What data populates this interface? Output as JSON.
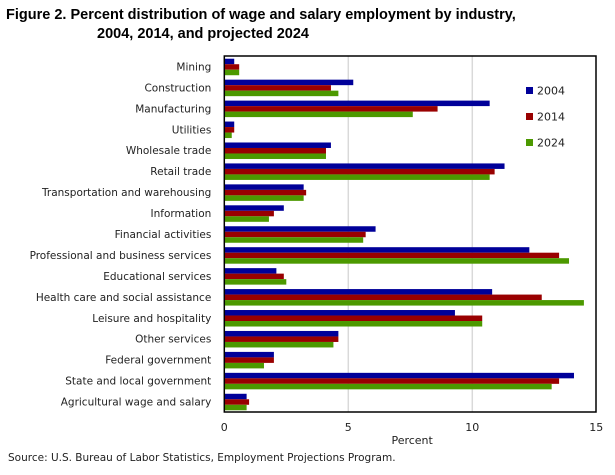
{
  "chart_data": {
    "type": "bar",
    "orientation": "horizontal",
    "title": "Figure 2. Percent distribution of wage and salary employment by industry,",
    "title_line2": "2004, 2014, and projected 2024",
    "xlabel": "Percent",
    "ylabel": "",
    "xlim": [
      0,
      15
    ],
    "xticks": [
      0,
      5,
      10,
      15
    ],
    "grid": true,
    "legend_position": "top-right",
    "categories": [
      "Mining",
      "Construction",
      "Manufacturing",
      "Utilities",
      "Wholesale trade",
      "Retail trade",
      "Transportation and warehousing",
      "Information",
      "Financial activities",
      "Professional and business services",
      "Educational services",
      "Health care and social assistance",
      "Leisure and hospitality",
      "Other services",
      "Federal government",
      "State and local government",
      "Agricultural wage and salary"
    ],
    "series": [
      {
        "name": "2004",
        "color": "#000099",
        "values": [
          0.4,
          5.2,
          10.7,
          0.4,
          4.3,
          11.3,
          3.2,
          2.4,
          6.1,
          12.3,
          2.1,
          10.8,
          9.3,
          4.6,
          2.0,
          14.1,
          0.9
        ]
      },
      {
        "name": "2014",
        "color": "#990000",
        "values": [
          0.6,
          4.3,
          8.6,
          0.4,
          4.1,
          10.9,
          3.3,
          2.0,
          5.7,
          13.5,
          2.4,
          12.8,
          10.4,
          4.6,
          2.0,
          13.5,
          1.0
        ]
      },
      {
        "name": "2024",
        "color": "#4c9900",
        "values": [
          0.6,
          4.6,
          7.6,
          0.3,
          4.1,
          10.7,
          3.2,
          1.8,
          5.6,
          13.9,
          2.5,
          14.5,
          10.4,
          4.4,
          1.6,
          13.2,
          0.9
        ]
      }
    ]
  },
  "source": "Source:  U.S. Bureau  of Labor Statistics,  Employment  Projections Program."
}
